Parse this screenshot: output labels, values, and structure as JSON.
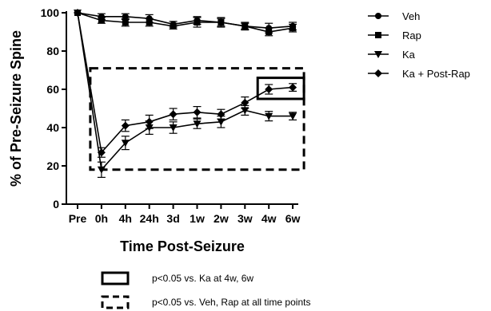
{
  "chart_data": {
    "type": "line",
    "title": "",
    "xlabel": "Time Post-Seizure",
    "ylabel": "% of Pre-Seizure Spine",
    "categories": [
      "Pre",
      "0h",
      "4h",
      "24h",
      "3d",
      "1w",
      "2w",
      "3w",
      "4w",
      "6w"
    ],
    "ylim": [
      0,
      100
    ],
    "yticks": [
      0,
      20,
      40,
      60,
      80,
      100
    ],
    "grid": false,
    "legend_position": "right",
    "series": [
      {
        "name": "Veh",
        "marker": "circle",
        "values": [
          100,
          98,
          98,
          97,
          94,
          96,
          95,
          93,
          92,
          93
        ],
        "errors": [
          0,
          1.5,
          1.5,
          2,
          1.5,
          2,
          2,
          2,
          2.5,
          2
        ]
      },
      {
        "name": "Rap",
        "marker": "square",
        "values": [
          100,
          96,
          95,
          95,
          93,
          95,
          95,
          93,
          90,
          92
        ],
        "errors": [
          0,
          1.5,
          2,
          2,
          1.5,
          2.5,
          2.5,
          1.5,
          2,
          2
        ]
      },
      {
        "name": "Ka",
        "marker": "triangle-down",
        "values": [
          100,
          18,
          32,
          40,
          40,
          42,
          43,
          49,
          46,
          46
        ],
        "errors": [
          0,
          4,
          3.5,
          3.5,
          3,
          2.5,
          3,
          2.5,
          2.5,
          2
        ]
      },
      {
        "name": "Ka + Post-Rap",
        "marker": "diamond",
        "values": [
          100,
          27,
          41,
          43,
          47,
          48,
          47,
          53,
          60,
          61
        ],
        "errors": [
          0,
          2.5,
          3,
          3.5,
          3,
          3,
          2.5,
          3,
          2.5,
          2
        ]
      }
    ],
    "annotations": [
      {
        "style": "solid",
        "label": "p<0.05 vs. Ka at 4w, 6w",
        "x_range": [
          "4w",
          "6w"
        ],
        "y_range": [
          55,
          66
        ]
      },
      {
        "style": "dashed",
        "label": "p<0.05 vs. Veh, Rap at all time points",
        "x_range": [
          "0h",
          "6w"
        ],
        "y_range": [
          18,
          71
        ]
      }
    ]
  }
}
